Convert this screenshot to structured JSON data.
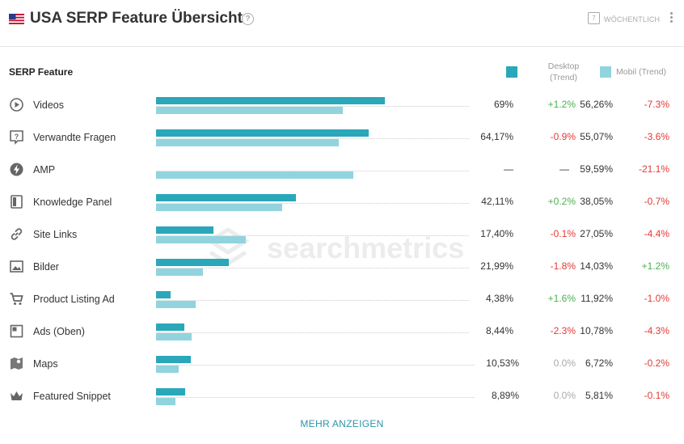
{
  "header": {
    "title": "USA SERP Feature Übersicht",
    "help_glyph": "?",
    "period_icon_glyph": "7",
    "period_label": "WÖCHENTLICH"
  },
  "colors": {
    "desktop": "#2aa7b9",
    "mobile": "#91d4de",
    "positive": "#4caf50",
    "negative": "#e53935"
  },
  "chart_data": {
    "type": "bar",
    "orientation": "horizontal",
    "column_header": "SERP Feature",
    "legend": {
      "desktop": "Desktop\n(Trend)",
      "mobile": "Mobil (Trend)"
    },
    "xlim": [
      0,
      100
    ],
    "categories": [
      "Videos",
      "Verwandte Fragen",
      "AMP",
      "Knowledge Panel",
      "Site Links",
      "Bilder",
      "Product Listing Ad",
      "Ads (Oben)",
      "Maps",
      "Featured Snippet"
    ],
    "icons": [
      "play-circle-icon",
      "question-box-icon",
      "lightning-icon",
      "panel-icon",
      "link-icon",
      "image-icon",
      "cart-icon",
      "ad-block-icon",
      "map-icon",
      "crown-icon"
    ],
    "series": [
      {
        "name": "Desktop",
        "values": [
          69,
          64.17,
          null,
          42.11,
          17.4,
          21.99,
          4.38,
          8.44,
          10.53,
          8.89
        ],
        "labels": [
          "69%",
          "64,17%",
          "—",
          "42,11%",
          "17,40%",
          "21,99%",
          "4,38%",
          "8,44%",
          "10,53%",
          "8,89%"
        ],
        "trend": [
          "+1.2%",
          "-0.9%",
          "—",
          "+0.2%",
          "-0.1%",
          "-1.8%",
          "+1.6%",
          "-2.3%",
          "0.0%",
          "0.0%"
        ]
      },
      {
        "name": "Mobil",
        "values": [
          56.26,
          55.07,
          59.59,
          38.05,
          27.05,
          14.03,
          11.92,
          10.78,
          6.72,
          5.81
        ],
        "labels": [
          "56,26%",
          "55,07%",
          "59,59%",
          "38,05%",
          "27,05%",
          "14,03%",
          "11,92%",
          "10,78%",
          "6,72%",
          "5,81%"
        ],
        "trend": [
          "-7.3%",
          "-3.6%",
          "-21.1%",
          "-0.7%",
          "-4.4%",
          "+1.2%",
          "-1.0%",
          "-4.3%",
          "-0.2%",
          "-0.1%"
        ]
      }
    ]
  },
  "watermark": "searchmetrics",
  "footer": {
    "more_label": "MEHR ANZEIGEN"
  }
}
